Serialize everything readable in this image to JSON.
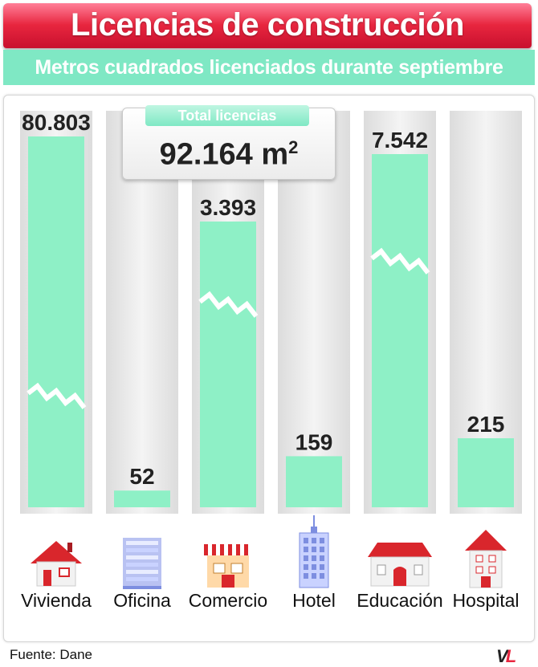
{
  "title": "Licencias de construcción",
  "subtitle": "Metros cuadrados licenciados durante septiembre",
  "total": {
    "label": "Total licencias",
    "value": "92.164",
    "unit": "m",
    "unit_sup": "2"
  },
  "source": "Fuente: Dane",
  "logo_text": {
    "v": "V",
    "l": "L"
  },
  "colors": {
    "title_red": "#e8263f",
    "bar_green": "#8ef0c6",
    "accent_mint": "#7fe8c4",
    "column_bg": "#e6e6e6"
  },
  "chart_data": {
    "type": "bar",
    "categories": [
      "Vivienda",
      "Oficina",
      "Comercio",
      "Hotel",
      "Educación",
      "Hospital"
    ],
    "values": [
      80803,
      52,
      3393,
      159,
      7542,
      215
    ],
    "value_labels": [
      "80.803",
      "52",
      "3.393",
      "159",
      "7.542",
      "215"
    ],
    "broken_axis_bars": [
      "Vivienda",
      "Comercio",
      "Educación"
    ],
    "icons": [
      "house-icon",
      "office-building-icon",
      "store-icon",
      "hotel-icon",
      "school-icon",
      "hospital-icon"
    ],
    "unit": "m²",
    "title": "",
    "xlabel": "",
    "ylabel": ""
  }
}
